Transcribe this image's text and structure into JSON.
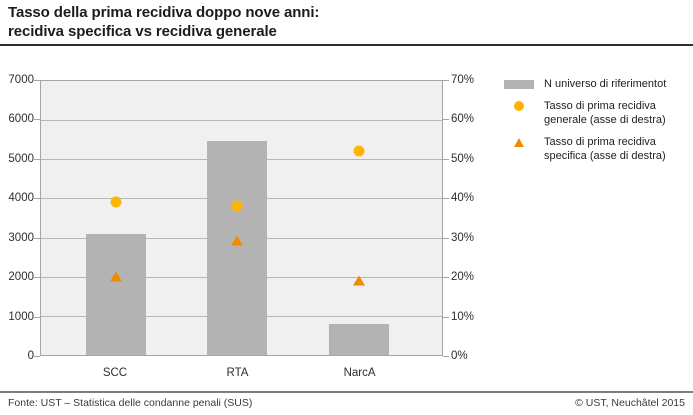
{
  "title": {
    "line1": "Tasso della prima recidiva doppo nove anni:",
    "line2": "recidiva specifica vs recidiva generale"
  },
  "chart_data": {
    "type": "bar",
    "categories": [
      "SCC",
      "RTA",
      "NarcA"
    ],
    "series": [
      {
        "name": "N universo di riferimentot",
        "type": "bar",
        "axis": "left",
        "values": [
          3100,
          5480,
          800
        ]
      },
      {
        "name": "Tasso di prima recidiva generale (asse di destra)",
        "type": "scatter",
        "marker": "circle",
        "axis": "right",
        "values": [
          39,
          38,
          52
        ]
      },
      {
        "name": "Tasso di prima recidiva specifica (asse di destra)",
        "type": "scatter",
        "marker": "triangle",
        "axis": "right",
        "values": [
          20,
          29,
          19
        ]
      }
    ],
    "left_axis": {
      "min": 0,
      "max": 7000,
      "ticks": [
        "7000",
        "6000",
        "5000",
        "4000",
        "3000",
        "2000",
        "1000",
        "0"
      ]
    },
    "right_axis": {
      "min": 0,
      "max": 70,
      "ticks": [
        "70%",
        "60%",
        "50%",
        "40%",
        "30%",
        "20%",
        "10%",
        "0%"
      ]
    },
    "grid": true,
    "legend_position": "right"
  },
  "legend": {
    "items": [
      {
        "marker": "bar-swatch",
        "label": "N universo di riferimentot"
      },
      {
        "marker": "circle",
        "label": "Tasso di prima recidiva generale (asse di destra)"
      },
      {
        "marker": "triangle",
        "label": "Tasso di prima recidiva specifica (asse di destra)"
      }
    ]
  },
  "colors": {
    "bar": "#b3b3b3",
    "circle": "#ffb400",
    "triangle": "#f18a00",
    "plot_bg": "#f0f0f0",
    "grid": "#b7b7b7"
  },
  "footer": {
    "source": "Fonte: UST – Statistica delle condanne penali (SUS)",
    "copyright": "© UST, Neuchâtel 2015"
  }
}
